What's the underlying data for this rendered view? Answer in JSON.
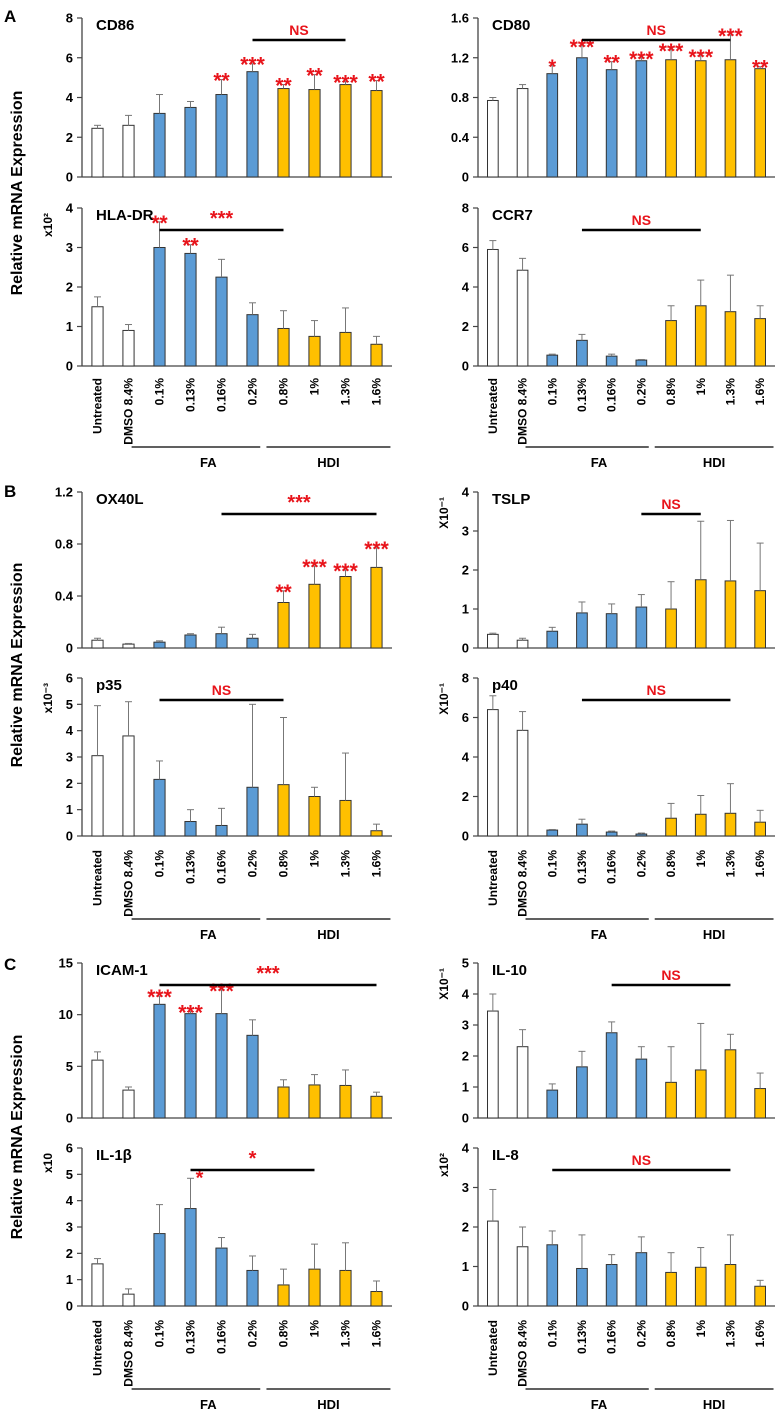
{
  "figure": {
    "y_axis_label": "Relative mRNA Expression",
    "group_labels": [
      "FA",
      "HDI"
    ]
  },
  "chart_data": [
    {
      "panel": "A",
      "type": "bar",
      "title": "CD86",
      "multiplier": "",
      "categories": [
        "Untreated",
        "DMSO 8.4%",
        "0.1%",
        "0.13%",
        "0.16%",
        "0.2%",
        "0.8%",
        "1%",
        "1.3%",
        "1.6%"
      ],
      "values": [
        2.45,
        2.6,
        3.2,
        3.5,
        4.15,
        5.3,
        4.45,
        4.4,
        4.65,
        4.35
      ],
      "errors": [
        0.15,
        0.5,
        0.95,
        0.3,
        0.75,
        0.4,
        0.2,
        0.75,
        0.15,
        0.5
      ],
      "ylim": [
        0,
        8
      ],
      "yticks": [
        "0",
        "2",
        "4",
        "6",
        "8"
      ],
      "significance": [
        "",
        "",
        "",
        "",
        "**",
        "***",
        "**",
        "**",
        "***",
        "**"
      ],
      "bracket": {
        "from": 5,
        "to": 8,
        "label": "NS"
      }
    },
    {
      "panel": "A",
      "type": "bar",
      "title": "CD80",
      "multiplier": "",
      "categories": [
        "Untreated",
        "DMSO 8.4%",
        "0.1%",
        "0.13%",
        "0.16%",
        "0.2%",
        "0.8%",
        "1%",
        "1.3%",
        "1.6%"
      ],
      "values": [
        0.77,
        0.89,
        1.04,
        1.2,
        1.08,
        1.17,
        1.18,
        1.17,
        1.18,
        1.09
      ],
      "errors": [
        0.03,
        0.04,
        0.08,
        0.12,
        0.08,
        0.03,
        0.1,
        0.05,
        0.25,
        0.02
      ],
      "ylim": [
        0,
        1.6
      ],
      "yticks": [
        "0",
        "0.4",
        "0.8",
        "1.2",
        "1.6"
      ],
      "significance": [
        "",
        "",
        "*",
        "***",
        "**",
        "***",
        "***",
        "***",
        "***",
        "**"
      ],
      "bracket": {
        "from": 3,
        "to": 8,
        "label": "NS"
      }
    },
    {
      "panel": "A",
      "type": "bar",
      "title": "HLA-DR",
      "multiplier": "x10²",
      "categories": [
        "Untreated",
        "DMSO 8.4%",
        "0.1%",
        "0.13%",
        "0.16%",
        "0.2%",
        "0.8%",
        "1%",
        "1.3%",
        "1.6%"
      ],
      "values": [
        1.5,
        0.9,
        3.0,
        2.85,
        2.25,
        1.3,
        0.95,
        0.75,
        0.85,
        0.55
      ],
      "errors": [
        0.25,
        0.15,
        0.65,
        0.22,
        0.45,
        0.3,
        0.45,
        0.4,
        0.62,
        0.2
      ],
      "ylim": [
        0,
        4
      ],
      "yticks": [
        "0",
        "1",
        "2",
        "3",
        "4"
      ],
      "significance": [
        "",
        "",
        "**",
        "**",
        "",
        "",
        "",
        "",
        "",
        ""
      ],
      "bracket": {
        "from": 2,
        "to": 6,
        "label": "***"
      }
    },
    {
      "panel": "A",
      "type": "bar",
      "title": "CCR7",
      "multiplier": "",
      "categories": [
        "Untreated",
        "DMSO 8.4%",
        "0.1%",
        "0.13%",
        "0.16%",
        "0.2%",
        "0.8%",
        "1%",
        "1.3%",
        "1.6%"
      ],
      "values": [
        5.9,
        4.85,
        0.55,
        1.3,
        0.5,
        0.3,
        2.3,
        3.05,
        2.75,
        2.4
      ],
      "errors": [
        0.45,
        0.6,
        0.05,
        0.3,
        0.1,
        0.03,
        0.75,
        1.3,
        1.85,
        0.65
      ],
      "ylim": [
        0,
        8
      ],
      "yticks": [
        "0",
        "2",
        "4",
        "6",
        "8"
      ],
      "significance": [
        "",
        "",
        "",
        "",
        "",
        "",
        "",
        "",
        "",
        ""
      ],
      "bracket": {
        "from": 3,
        "to": 7,
        "label": "NS"
      }
    },
    {
      "panel": "B",
      "type": "bar",
      "title": "OX40L",
      "multiplier": "",
      "categories": [
        "Untreated",
        "DMSO 8.4%",
        "0.1%",
        "0.13%",
        "0.16%",
        "0.2%",
        "0.8%",
        "1%",
        "1.3%",
        "1.6%"
      ],
      "values": [
        0.06,
        0.03,
        0.045,
        0.1,
        0.11,
        0.075,
        0.35,
        0.49,
        0.55,
        0.62
      ],
      "errors": [
        0.015,
        0.005,
        0.01,
        0.01,
        0.05,
        0.03,
        0.09,
        0.14,
        0.05,
        0.15
      ],
      "ylim": [
        0,
        1.2
      ],
      "yticks": [
        "0",
        "0.4",
        "0.8",
        "1.2"
      ],
      "significance": [
        "",
        "",
        "",
        "",
        "",
        "",
        "**",
        "***",
        "***",
        "***"
      ],
      "bracket": {
        "from": 4,
        "to": 9,
        "label": "***"
      }
    },
    {
      "panel": "B",
      "type": "bar",
      "title": "TSLP",
      "multiplier": "X10⁻¹",
      "categories": [
        "Untreated",
        "DMSO 8.4%",
        "0.1%",
        "0.13%",
        "0.16%",
        "0.2%",
        "0.8%",
        "1%",
        "1.3%",
        "1.6%"
      ],
      "values": [
        0.35,
        0.2,
        0.43,
        0.9,
        0.88,
        1.05,
        1.0,
        1.75,
        1.72,
        1.47
      ],
      "errors": [
        0.03,
        0.05,
        0.1,
        0.28,
        0.25,
        0.32,
        0.7,
        1.5,
        1.55,
        1.22
      ],
      "ylim": [
        0,
        4
      ],
      "yticks": [
        "0",
        "1",
        "2",
        "3",
        "4"
      ],
      "significance": [
        "",
        "",
        "",
        "",
        "",
        "",
        "",
        "",
        "",
        ""
      ],
      "bracket": {
        "from": 5,
        "to": 7,
        "label": "NS"
      }
    },
    {
      "panel": "B",
      "type": "bar",
      "title": "p35",
      "multiplier": "x10⁻³",
      "categories": [
        "Untreated",
        "DMSO 8.4%",
        "0.1%",
        "0.13%",
        "0.16%",
        "0.2%",
        "0.8%",
        "1%",
        "1.3%",
        "1.6%"
      ],
      "values": [
        3.05,
        3.8,
        2.15,
        0.55,
        0.4,
        1.85,
        1.95,
        1.5,
        1.35,
        0.2
      ],
      "errors": [
        1.9,
        1.3,
        0.7,
        0.45,
        0.65,
        3.15,
        2.55,
        0.35,
        1.8,
        0.25
      ],
      "ylim": [
        0,
        6
      ],
      "yticks": [
        "0",
        "1",
        "2",
        "3",
        "4",
        "5",
        "6"
      ],
      "significance": [
        "",
        "",
        "",
        "",
        "",
        "",
        "",
        "",
        "",
        ""
      ],
      "bracket": {
        "from": 2,
        "to": 6,
        "label": "NS"
      }
    },
    {
      "panel": "B",
      "type": "bar",
      "title": "p40",
      "multiplier": "X10⁻¹",
      "categories": [
        "Untreated",
        "DMSO 8.4%",
        "0.1%",
        "0.13%",
        "0.16%",
        "0.2%",
        "0.8%",
        "1%",
        "1.3%",
        "1.6%"
      ],
      "values": [
        6.4,
        5.35,
        0.3,
        0.6,
        0.2,
        0.1,
        0.9,
        1.1,
        1.15,
        0.7
      ],
      "errors": [
        0.7,
        0.95,
        0.03,
        0.25,
        0.05,
        0.05,
        0.75,
        0.95,
        1.5,
        0.6
      ],
      "ylim": [
        0,
        8
      ],
      "yticks": [
        "0",
        "2",
        "4",
        "6",
        "8"
      ],
      "significance": [
        "",
        "",
        "",
        "",
        "",
        "",
        "",
        "",
        "",
        ""
      ],
      "bracket": {
        "from": 3,
        "to": 8,
        "label": "NS"
      }
    },
    {
      "panel": "C",
      "type": "bar",
      "title": "ICAM-1",
      "multiplier": "",
      "categories": [
        "Untreated",
        "DMSO 8.4%",
        "0.1%",
        "0.13%",
        "0.16%",
        "0.2%",
        "0.8%",
        "1%",
        "1.3%",
        "1.6%"
      ],
      "values": [
        5.6,
        2.7,
        11.0,
        10.1,
        10.1,
        8.0,
        3.0,
        3.2,
        3.15,
        2.1
      ],
      "errors": [
        0.8,
        0.3,
        0.8,
        0.2,
        2.3,
        1.5,
        0.7,
        1.0,
        1.5,
        0.4
      ],
      "ylim": [
        0,
        15
      ],
      "yticks": [
        "0",
        "5",
        "10",
        "15"
      ],
      "significance": [
        "",
        "",
        "***",
        "***",
        "***",
        "",
        "",
        "",
        "",
        ""
      ],
      "bracket": {
        "from": 2,
        "to": 9,
        "label": "***"
      }
    },
    {
      "panel": "C",
      "type": "bar",
      "title": "IL-10",
      "multiplier": "X10⁻¹",
      "categories": [
        "Untreated",
        "DMSO 8.4%",
        "0.1%",
        "0.13%",
        "0.16%",
        "0.2%",
        "0.8%",
        "1%",
        "1.3%",
        "1.6%"
      ],
      "values": [
        3.45,
        2.3,
        0.9,
        1.65,
        2.75,
        1.9,
        1.15,
        1.55,
        2.2,
        0.95
      ],
      "errors": [
        0.55,
        0.55,
        0.2,
        0.5,
        0.35,
        0.4,
        1.15,
        1.5,
        0.5,
        0.5
      ],
      "ylim": [
        0,
        5
      ],
      "yticks": [
        "0",
        "1",
        "2",
        "3",
        "4",
        "5"
      ],
      "significance": [
        "",
        "",
        "",
        "",
        "",
        "",
        "",
        "",
        "",
        ""
      ],
      "bracket": {
        "from": 4,
        "to": 8,
        "label": "NS"
      }
    },
    {
      "panel": "C",
      "type": "bar",
      "title": "IL-1β",
      "multiplier": "x10",
      "categories": [
        "Untreated",
        "DMSO 8.4%",
        "0.1%",
        "0.13%",
        "0.16%",
        "0.2%",
        "0.8%",
        "1%",
        "1.3%",
        "1.6%"
      ],
      "values": [
        1.6,
        0.45,
        2.75,
        3.7,
        2.2,
        1.35,
        0.8,
        1.4,
        1.35,
        0.55
      ],
      "errors": [
        0.2,
        0.2,
        1.1,
        1.15,
        0.4,
        0.55,
        0.6,
        0.95,
        1.05,
        0.4
      ],
      "ylim": [
        0,
        6
      ],
      "yticks": [
        "0",
        "1",
        "2",
        "3",
        "4",
        "5",
        "6"
      ],
      "significance": [
        "",
        "",
        "",
        "*",
        "",
        "",
        "",
        "",
        "",
        ""
      ],
      "bracket": {
        "from": 3,
        "to": 7,
        "label": "*"
      }
    },
    {
      "panel": "C",
      "type": "bar",
      "title": "IL-8",
      "multiplier": "x10²",
      "categories": [
        "Untreated",
        "DMSO 8.4%",
        "0.1%",
        "0.13%",
        "0.16%",
        "0.2%",
        "0.8%",
        "1%",
        "1.3%",
        "1.6%"
      ],
      "values": [
        2.15,
        1.5,
        1.55,
        0.95,
        1.05,
        1.35,
        0.85,
        0.98,
        1.05,
        0.5
      ],
      "errors": [
        0.8,
        0.5,
        0.35,
        0.85,
        0.25,
        0.4,
        0.5,
        0.5,
        0.75,
        0.15
      ],
      "ylim": [
        0,
        4
      ],
      "yticks": [
        "0",
        "1",
        "2",
        "3",
        "4"
      ],
      "significance": [
        "",
        "",
        "",
        "",
        "",
        "",
        "",
        "",
        "",
        ""
      ],
      "bracket": {
        "from": 2,
        "to": 8,
        "label": "NS"
      }
    }
  ],
  "colors": {
    "control_fill": "#ffffff",
    "fa_fill": "#5b9bd5",
    "hdi_fill": "#ffc000",
    "bar_stroke": "#333333",
    "significance": "#e8141b",
    "axis": "#444444"
  }
}
